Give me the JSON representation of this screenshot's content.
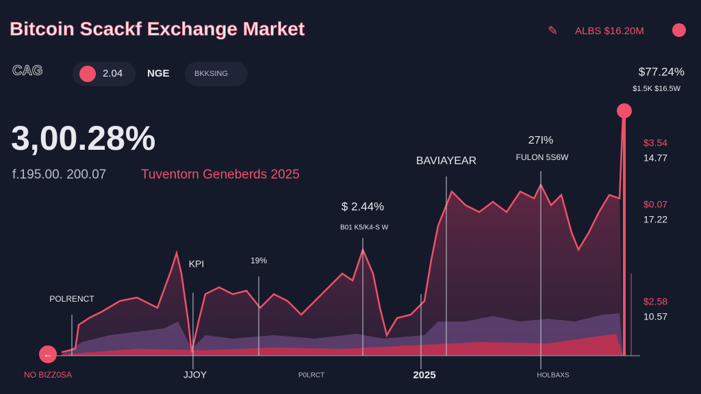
{
  "header": {
    "title": "Bitcoin Scackf Exchange Market",
    "account": "ALBS $16.20M"
  },
  "toolbar": {
    "items": [
      "CAG",
      "2.04",
      "NGE",
      "BKKSING"
    ]
  },
  "summary": {
    "headline": "3,00.28%",
    "subtitle_left": "f.195.00. 200.07",
    "subtitle_right": "Tuventorn Geneberds 2025"
  },
  "side": {
    "top": "$77.24%",
    "top_sub": "$1.5K $16.5W",
    "labels": [
      "$3.54",
      "14.77",
      "$0.07",
      "17.22",
      "$2.58",
      "10.57"
    ]
  },
  "annotations": [
    "BAVIAYEAR",
    "27I%",
    "FULON 5S6W",
    "$ 2.44%",
    "B01 K5/K4-S W",
    "KPI",
    "19%",
    "POLRENCT"
  ],
  "x_labels": [
    "NO BIZZ0SA",
    "JJOY",
    "P0LRCT",
    "2025",
    "HOLBAXS"
  ]
}
